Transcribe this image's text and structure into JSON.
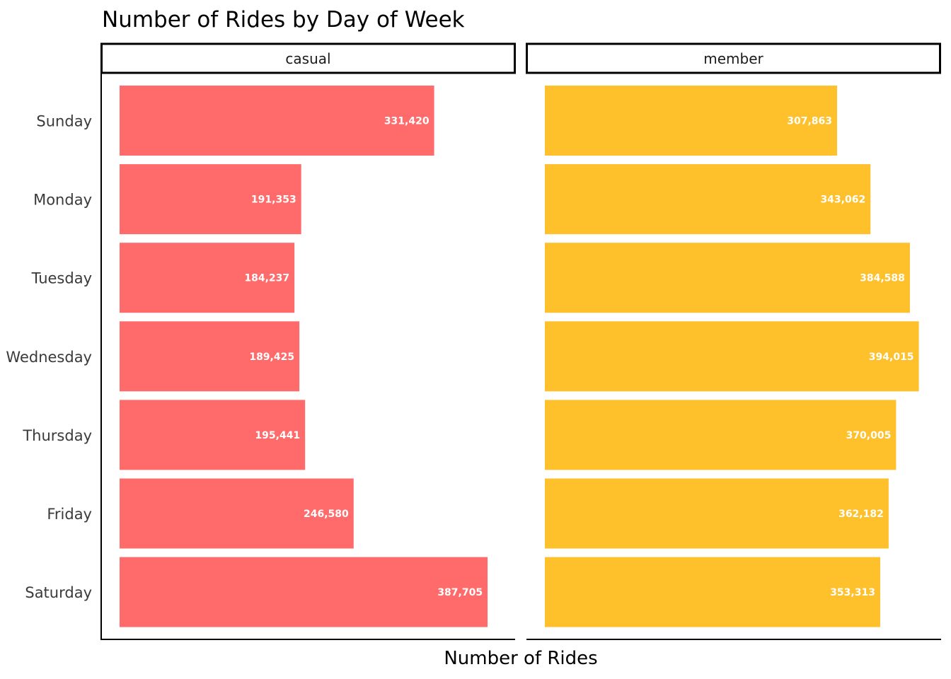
{
  "chart_data": {
    "type": "bar",
    "orientation": "horizontal",
    "title": "Number of Rides by Day of Week",
    "xlabel": "Number of Rides",
    "ylabel": "",
    "categories": [
      "Sunday",
      "Monday",
      "Tuesday",
      "Wednesday",
      "Thursday",
      "Friday",
      "Saturday"
    ],
    "xlim": [
      0,
      410000
    ],
    "grid": false,
    "legend": "none",
    "panels": [
      {
        "name": "casual",
        "color": "#ff6b6b",
        "values": [
          331420,
          191353,
          184237,
          189425,
          195441,
          246580,
          387705
        ],
        "labels": [
          "331,420",
          "191,353",
          "184,237",
          "189,425",
          "195,441",
          "246,580",
          "387,705"
        ]
      },
      {
        "name": "member",
        "color": "#fec02b",
        "values": [
          307863,
          343062,
          384588,
          394015,
          370005,
          362182,
          353313
        ],
        "labels": [
          "307,863",
          "343,062",
          "384,588",
          "394,015",
          "370,005",
          "362,182",
          "353,313"
        ]
      }
    ]
  }
}
